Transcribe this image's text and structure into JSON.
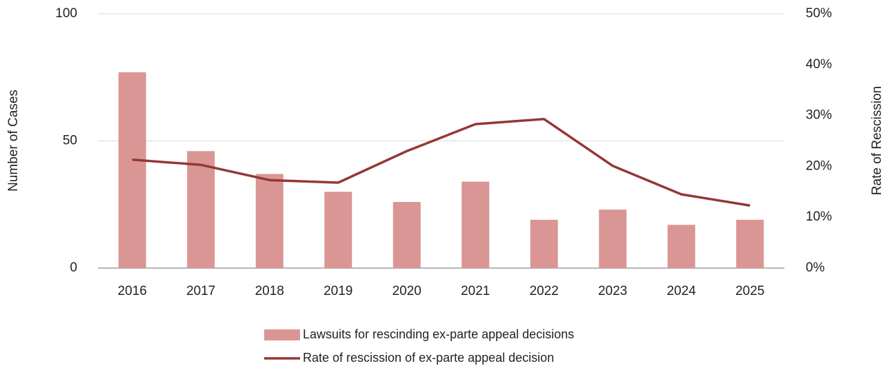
{
  "chart_data": {
    "type": "bar",
    "categories": [
      "2016",
      "2017",
      "2018",
      "2019",
      "2020",
      "2021",
      "2022",
      "2023",
      "2024",
      "2025"
    ],
    "series": [
      {
        "name": "Lawsuits for rescinding ex-parte appeal decisions",
        "type": "bar",
        "color": "#d99694",
        "values": [
          77,
          46,
          37,
          30,
          26,
          34,
          19,
          23,
          17,
          19
        ]
      },
      {
        "name": "Rate of rescission of ex-parte appeal decision",
        "type": "line",
        "axis": "y2",
        "color": "#953735",
        "values": [
          21.3,
          20.3,
          17.3,
          16.8,
          23.0,
          28.3,
          29.3,
          20.1,
          14.5,
          12.3
        ]
      }
    ],
    "y_label": "Number of Cases",
    "y2_label": "Rate of Rescission",
    "ylim": [
      0,
      100
    ],
    "yticks": [
      0,
      50,
      100
    ],
    "y2lim": [
      0,
      50
    ],
    "y2ticks": [
      {
        "value": 0,
        "label": "0%"
      },
      {
        "value": 10,
        "label": "10%"
      },
      {
        "value": 20,
        "label": "20%"
      },
      {
        "value": 30,
        "label": "30%"
      },
      {
        "value": 40,
        "label": "40%"
      },
      {
        "value": 50,
        "label": "50%"
      }
    ],
    "grid": true,
    "legend": "bottom"
  }
}
